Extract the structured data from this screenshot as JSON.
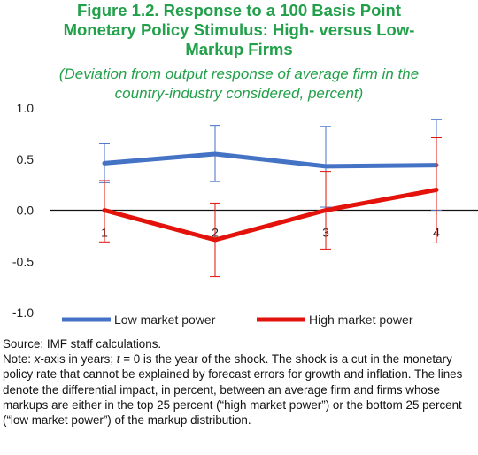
{
  "figure": {
    "title_lines": [
      "Figure 1.2. Response to a 100 Basis Point",
      "Monetary Policy Stimulus: High- versus Low-",
      "Markup Firms"
    ],
    "subtitle_lines": [
      "(Deviation from output response of average firm in the",
      "country-industry considered, percent)"
    ]
  },
  "chart_data": {
    "type": "line",
    "x": [
      1,
      2,
      3,
      4
    ],
    "xtick_labels": [
      "1",
      "2",
      "3",
      "4"
    ],
    "ylim": [
      -1.0,
      1.0
    ],
    "yticks": [
      1.0,
      0.5,
      0.0,
      -0.5,
      -1.0
    ],
    "ytick_labels": [
      "1.0",
      "0.5",
      "0.0",
      "-0.5",
      "-1.0"
    ],
    "legend_position": "bottom",
    "series": [
      {
        "name": "Low market power",
        "color": "#4472c4",
        "values": [
          0.46,
          0.55,
          0.43,
          0.44
        ],
        "error_low": [
          0.27,
          0.28,
          0.03,
          0.0
        ],
        "error_high": [
          0.65,
          0.83,
          0.82,
          0.89
        ]
      },
      {
        "name": "High market power",
        "color": "#e3120b",
        "values": [
          0.0,
          -0.29,
          0.0,
          0.2
        ],
        "error_low": [
          -0.31,
          -0.65,
          -0.38,
          -0.32
        ],
        "error_high": [
          0.29,
          0.07,
          0.38,
          0.71
        ]
      }
    ]
  },
  "notes": {
    "source": "Source: IMF staff calculations.",
    "note_intro": "Note: ",
    "note_var1": "x",
    "note_part1": "-axis in years; ",
    "note_var2": "t",
    "note_part2": " = 0 is the year of the shock. The shock is a cut in the monetary policy rate that cannot be explained by forecast errors for growth and inflation. The lines denote the differential impact, in percent, between an average firm and firms whose markups are either in the top 25 percent (“high market power”) or the bottom 25 percent (“low market power”) of the markup distribution."
  }
}
